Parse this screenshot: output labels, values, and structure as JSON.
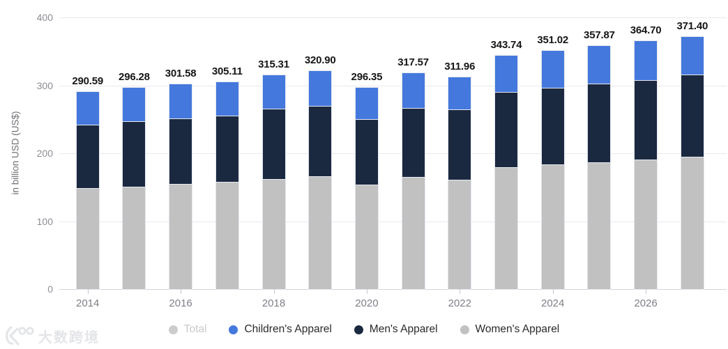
{
  "watermark": {
    "logo": "dashu-kuajing-logo",
    "text": "大数跨境"
  },
  "chart_data": {
    "type": "bar",
    "stacked": true,
    "title": "",
    "xlabel": "",
    "ylabel": "in billion USD (US$)",
    "ylim": [
      0,
      400
    ],
    "y_ticks": [
      0,
      100,
      200,
      300,
      400
    ],
    "grid": "horizontal",
    "categories": [
      "2014",
      "2015",
      "2016",
      "2017",
      "2018",
      "2019",
      "2020",
      "2021",
      "2022",
      "2023",
      "2024",
      "2025",
      "2026",
      "2027"
    ],
    "x_labeled_categories": [
      "2014",
      "2016",
      "2018",
      "2020",
      "2022",
      "2024",
      "2026"
    ],
    "totals": [
      290.59,
      296.28,
      301.58,
      305.11,
      315.31,
      320.9,
      296.35,
      317.57,
      311.96,
      343.74,
      351.02,
      357.87,
      364.7,
      371.4
    ],
    "total_labels": [
      "290.59",
      "296.28",
      "301.58",
      "305.11",
      "315.31",
      "320.90",
      "296.35",
      "317.57",
      "311.96",
      "343.74",
      "351.02",
      "357.87",
      "364.70",
      "371.40"
    ],
    "series": [
      {
        "name": "Women's Apparel",
        "color": "#c1c1c1",
        "values": [
          148.5,
          151.2,
          155.3,
          157.6,
          162.1,
          166.5,
          153.4,
          165.5,
          161.4,
          179.1,
          183.2,
          186.6,
          190.8,
          194.5
        ]
      },
      {
        "name": "Men's Apparel",
        "color": "#1b2940",
        "values": [
          93.2,
          95.6,
          95.6,
          98.3,
          103.1,
          103.7,
          96.6,
          101.4,
          103.1,
          111.0,
          113.7,
          115.5,
          116.8,
          121.0
        ]
      },
      {
        "name": "Children's Apparel",
        "color": "#4478dd",
        "values": [
          48.89,
          49.48,
          50.68,
          49.21,
          50.11,
          50.7,
          46.35,
          50.67,
          47.46,
          53.64,
          54.12,
          55.77,
          57.1,
          55.9
        ]
      }
    ],
    "legend": {
      "position": "bottom",
      "items": [
        {
          "label": "Total",
          "color": "#cccccc",
          "muted": true
        },
        {
          "label": "Children's Apparel",
          "color": "#4478dd",
          "muted": false
        },
        {
          "label": "Men's Apparel",
          "color": "#1b2940",
          "muted": false
        },
        {
          "label": "Women's Apparel",
          "color": "#c1c1c1",
          "muted": false
        }
      ]
    },
    "colors": {
      "background": "#ffffff",
      "gridline": "#e9eaf0",
      "axis_line": "#d2d4db",
      "tick_text": "#8c8c94",
      "value_label_text": "#161616"
    }
  }
}
